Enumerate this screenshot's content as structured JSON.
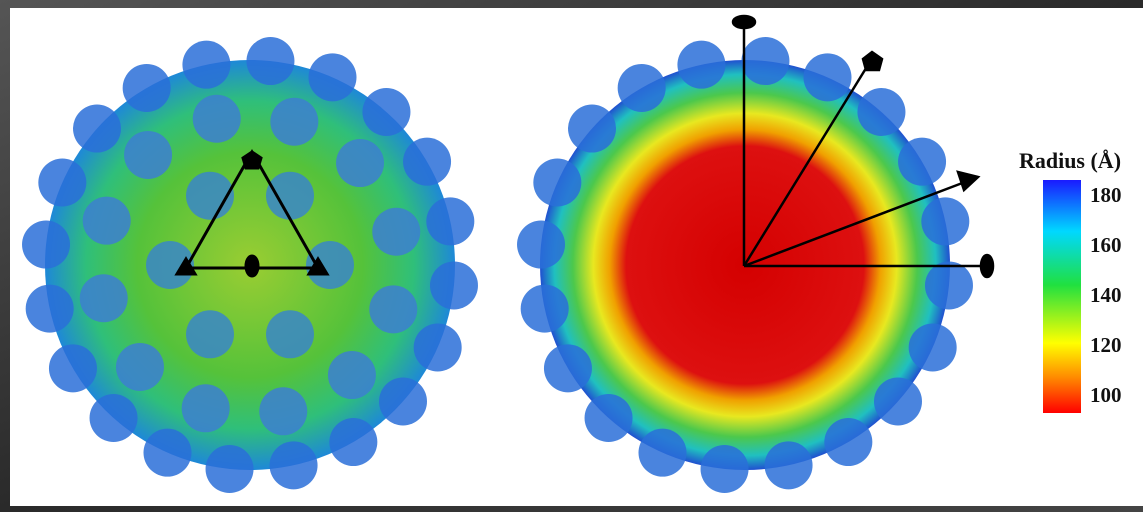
{
  "colorbar": {
    "title": "Radius (Å)",
    "ticks": [
      "180",
      "160",
      "140",
      "120",
      "100"
    ]
  }
}
